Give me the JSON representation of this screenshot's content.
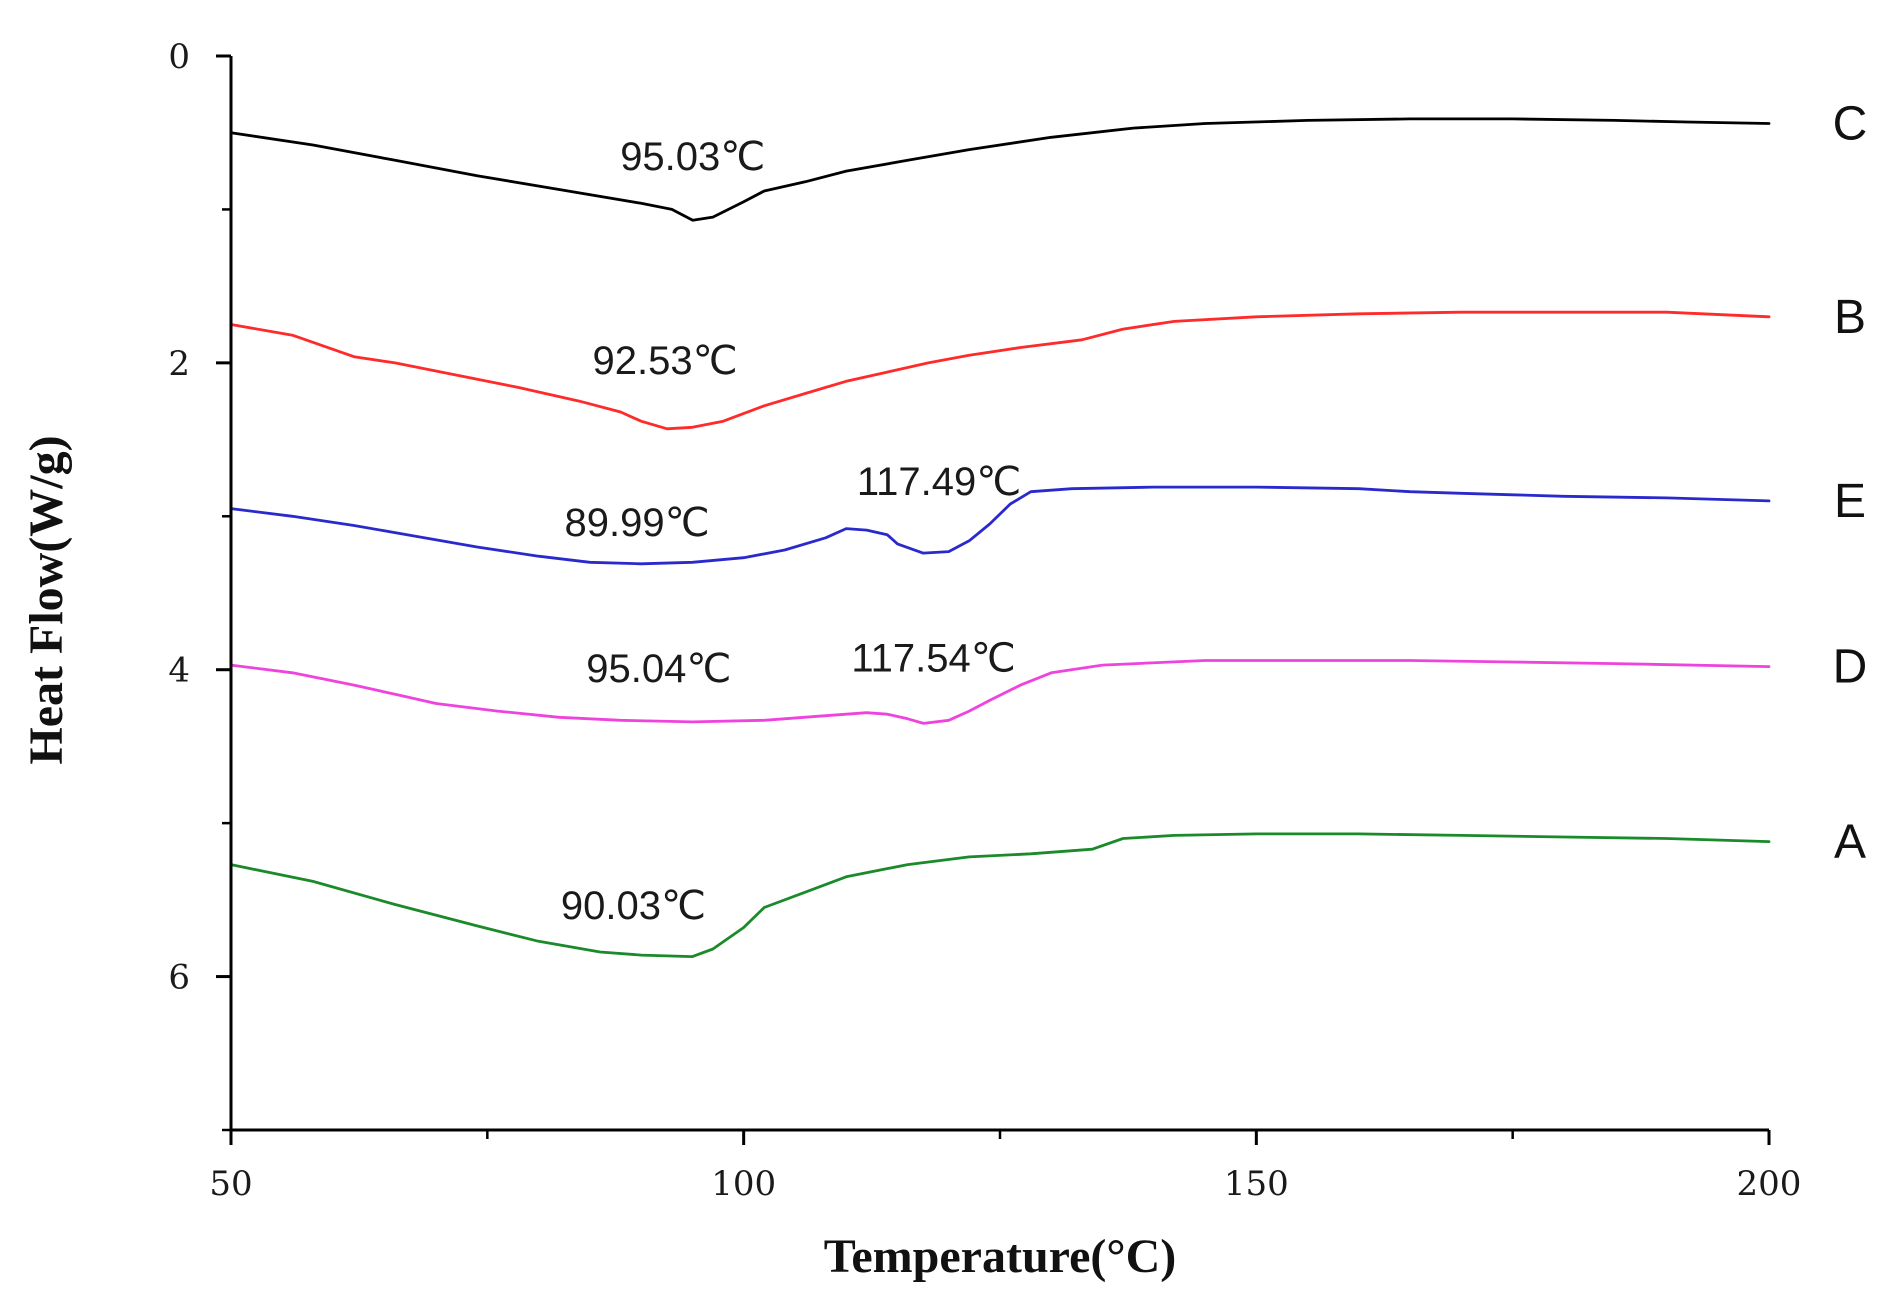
{
  "chart_data": {
    "type": "line",
    "title": "",
    "xlabel": "Temperature(°C)",
    "ylabel": "Heat Flow(W/g)",
    "xlim": [
      50,
      200
    ],
    "ylim": [
      7,
      0
    ],
    "x_ticks": [
      50,
      100,
      150,
      200
    ],
    "y_ticks": [
      0,
      2,
      4,
      6
    ],
    "grid": false,
    "series": [
      {
        "name": "C",
        "color": "#000000",
        "points": [
          [
            50,
            0.5
          ],
          [
            58,
            0.58
          ],
          [
            66,
            0.68
          ],
          [
            74,
            0.78
          ],
          [
            82,
            0.87
          ],
          [
            90,
            0.96
          ],
          [
            93,
            1.0
          ],
          [
            95.03,
            1.07
          ],
          [
            97,
            1.05
          ],
          [
            100,
            0.95
          ],
          [
            102,
            0.88
          ],
          [
            106,
            0.82
          ],
          [
            110,
            0.75
          ],
          [
            116,
            0.68
          ],
          [
            122,
            0.61
          ],
          [
            130,
            0.53
          ],
          [
            138,
            0.47
          ],
          [
            145,
            0.44
          ],
          [
            155,
            0.42
          ],
          [
            165,
            0.41
          ],
          [
            175,
            0.41
          ],
          [
            185,
            0.42
          ],
          [
            192,
            0.43
          ],
          [
            200,
            0.44
          ]
        ],
        "annotations": [
          {
            "label": "95.03℃",
            "x": 95.03,
            "y": 1.07
          }
        ]
      },
      {
        "name": "B",
        "color": "#ff2a2a",
        "points": [
          [
            50,
            1.75
          ],
          [
            56,
            1.82
          ],
          [
            62,
            1.96
          ],
          [
            66,
            2.0
          ],
          [
            72,
            2.08
          ],
          [
            78,
            2.16
          ],
          [
            84,
            2.25
          ],
          [
            88,
            2.32
          ],
          [
            90,
            2.38
          ],
          [
            92.53,
            2.43
          ],
          [
            95,
            2.42
          ],
          [
            98,
            2.38
          ],
          [
            102,
            2.28
          ],
          [
            106,
            2.2
          ],
          [
            110,
            2.12
          ],
          [
            114,
            2.06
          ],
          [
            118,
            2.0
          ],
          [
            122,
            1.95
          ],
          [
            127,
            1.9
          ],
          [
            133,
            1.85
          ],
          [
            137,
            1.78
          ],
          [
            142,
            1.73
          ],
          [
            150,
            1.7
          ],
          [
            160,
            1.68
          ],
          [
            170,
            1.67
          ],
          [
            180,
            1.67
          ],
          [
            190,
            1.67
          ],
          [
            200,
            1.7
          ]
        ],
        "annotations": [
          {
            "label": "92.53℃",
            "x": 92.53,
            "y": 2.43
          }
        ]
      },
      {
        "name": "E",
        "color": "#2a2acc",
        "points": [
          [
            50,
            2.95
          ],
          [
            56,
            3.0
          ],
          [
            62,
            3.06
          ],
          [
            68,
            3.13
          ],
          [
            74,
            3.2
          ],
          [
            80,
            3.26
          ],
          [
            85,
            3.3
          ],
          [
            89.99,
            3.31
          ],
          [
            95,
            3.3
          ],
          [
            100,
            3.27
          ],
          [
            104,
            3.22
          ],
          [
            108,
            3.14
          ],
          [
            110,
            3.08
          ],
          [
            112,
            3.09
          ],
          [
            114,
            3.12
          ],
          [
            115,
            3.18
          ],
          [
            117.49,
            3.24
          ],
          [
            120,
            3.23
          ],
          [
            122,
            3.16
          ],
          [
            124,
            3.05
          ],
          [
            126,
            2.92
          ],
          [
            128,
            2.84
          ],
          [
            132,
            2.82
          ],
          [
            140,
            2.81
          ],
          [
            150,
            2.81
          ],
          [
            160,
            2.82
          ],
          [
            165,
            2.84
          ],
          [
            170,
            2.85
          ],
          [
            175,
            2.86
          ],
          [
            180,
            2.87
          ],
          [
            190,
            2.88
          ],
          [
            200,
            2.9
          ]
        ],
        "annotations": [
          {
            "label": "89.99℃",
            "x": 89.99,
            "y": 3.31
          },
          {
            "label": "117.49℃",
            "x": 117.49,
            "y": 3.24
          }
        ]
      },
      {
        "name": "D",
        "color": "#ee44dd",
        "points": [
          [
            50,
            3.97
          ],
          [
            56,
            4.02
          ],
          [
            62,
            4.1
          ],
          [
            66,
            4.16
          ],
          [
            70,
            4.22
          ],
          [
            76,
            4.27
          ],
          [
            82,
            4.31
          ],
          [
            88,
            4.33
          ],
          [
            95.04,
            4.34
          ],
          [
            102,
            4.33
          ],
          [
            108,
            4.3
          ],
          [
            112,
            4.28
          ],
          [
            114,
            4.29
          ],
          [
            116,
            4.32
          ],
          [
            117.54,
            4.35
          ],
          [
            120,
            4.33
          ],
          [
            122,
            4.27
          ],
          [
            124,
            4.2
          ],
          [
            127,
            4.1
          ],
          [
            130,
            4.02
          ],
          [
            135,
            3.97
          ],
          [
            145,
            3.94
          ],
          [
            155,
            3.94
          ],
          [
            165,
            3.94
          ],
          [
            175,
            3.95
          ],
          [
            185,
            3.96
          ],
          [
            200,
            3.98
          ]
        ],
        "annotations": [
          {
            "label": "95.04℃",
            "x": 95.04,
            "y": 4.34
          },
          {
            "label": "117.54℃",
            "x": 117.54,
            "y": 4.35
          }
        ]
      },
      {
        "name": "A",
        "color": "#1a8a2a",
        "points": [
          [
            50,
            5.27
          ],
          [
            58,
            5.38
          ],
          [
            66,
            5.53
          ],
          [
            74,
            5.67
          ],
          [
            80,
            5.77
          ],
          [
            86,
            5.84
          ],
          [
            90.03,
            5.86
          ],
          [
            95,
            5.87
          ],
          [
            97,
            5.82
          ],
          [
            100,
            5.68
          ],
          [
            102,
            5.55
          ],
          [
            106,
            5.45
          ],
          [
            110,
            5.35
          ],
          [
            116,
            5.27
          ],
          [
            122,
            5.22
          ],
          [
            128,
            5.2
          ],
          [
            134,
            5.17
          ],
          [
            137,
            5.1
          ],
          [
            142,
            5.08
          ],
          [
            150,
            5.07
          ],
          [
            160,
            5.07
          ],
          [
            170,
            5.08
          ],
          [
            180,
            5.09
          ],
          [
            190,
            5.1
          ],
          [
            200,
            5.12
          ]
        ],
        "annotations": [
          {
            "label": "90.03℃",
            "x": 90.03,
            "y": 5.86
          }
        ]
      }
    ]
  }
}
